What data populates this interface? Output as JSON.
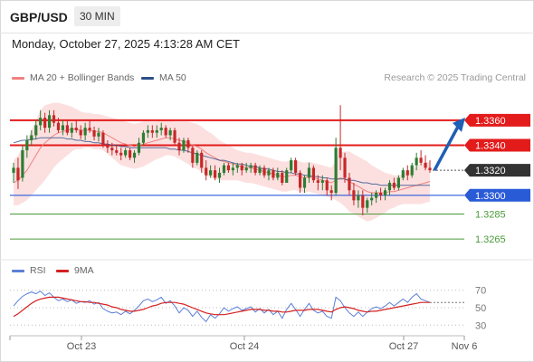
{
  "header": {
    "pair": "GBP/USD",
    "timeframe": "30 MIN"
  },
  "datetime": "Monday, October 27, 2025 4:13:28 AM CET",
  "legend": {
    "ma20": {
      "label": "MA 20 + Bollinger Bands",
      "color": "#f08080"
    },
    "ma50": {
      "label": "MA 50",
      "color": "#2c4f8a"
    }
  },
  "credit": "Research © 2025 Trading Central",
  "rsi_legend": {
    "rsi": {
      "label": "RSI",
      "color": "#5b7fd6"
    },
    "ma9": {
      "label": "9MA",
      "color": "#d42020"
    }
  },
  "chart_data": [
    {
      "type": "candlestick",
      "ylim": [
        1.3255,
        1.3378
      ],
      "x_ticks": [
        "Oct 23",
        "Oct 24",
        "Oct 27",
        "Nov 6"
      ],
      "levels": [
        {
          "value": 1.336,
          "label": "1.3360",
          "style": "resistance"
        },
        {
          "value": 1.334,
          "label": "1.3340",
          "style": "resistance"
        },
        {
          "value": 1.332,
          "label": "1.3320",
          "style": "current"
        },
        {
          "value": 1.33,
          "label": "1.3300",
          "style": "pivot"
        },
        {
          "value": 1.3285,
          "label": "1.3285",
          "style": "support"
        },
        {
          "value": 1.3265,
          "label": "1.3265",
          "style": "support"
        }
      ],
      "colors": {
        "up": "#2e7d32",
        "down": "#c62828",
        "band": "#fbd5d5",
        "resistance": "#e31b1b",
        "pivot": "#2a5bd7",
        "support": "#4a9a3a",
        "current": "#333333",
        "arrow": "#1f5fb5"
      },
      "candles": [
        [
          1.3318,
          1.3326,
          1.331,
          1.3322
        ],
        [
          1.3322,
          1.333,
          1.3305,
          1.3312
        ],
        [
          1.3314,
          1.334,
          1.3311,
          1.3336
        ],
        [
          1.3336,
          1.3348,
          1.333,
          1.3344
        ],
        [
          1.3344,
          1.3352,
          1.334,
          1.3348
        ],
        [
          1.3348,
          1.336,
          1.3345,
          1.3356
        ],
        [
          1.3356,
          1.3368,
          1.3352,
          1.3362
        ],
        [
          1.3362,
          1.3366,
          1.335,
          1.3354
        ],
        [
          1.3354,
          1.3368,
          1.335,
          1.3364
        ],
        [
          1.3364,
          1.3368,
          1.3355,
          1.3358
        ],
        [
          1.3358,
          1.3362,
          1.335,
          1.3352
        ],
        [
          1.3352,
          1.336,
          1.3348,
          1.3356
        ],
        [
          1.3356,
          1.336,
          1.3348,
          1.335
        ],
        [
          1.335,
          1.3358,
          1.3346,
          1.3354
        ],
        [
          1.3354,
          1.336,
          1.335,
          1.3352
        ],
        [
          1.3352,
          1.3356,
          1.3345,
          1.3348
        ],
        [
          1.3348,
          1.3358,
          1.3344,
          1.3354
        ],
        [
          1.3354,
          1.336,
          1.335,
          1.3352
        ],
        [
          1.3352,
          1.3355,
          1.3344,
          1.3347
        ],
        [
          1.3347,
          1.3354,
          1.3343,
          1.335
        ],
        [
          1.335,
          1.3352,
          1.3338,
          1.334
        ],
        [
          1.334,
          1.3344,
          1.3334,
          1.3338
        ],
        [
          1.3338,
          1.3342,
          1.3332,
          1.3336
        ],
        [
          1.3336,
          1.334,
          1.3332,
          1.3334
        ],
        [
          1.3334,
          1.3338,
          1.3328,
          1.3332
        ],
        [
          1.3332,
          1.3338,
          1.333,
          1.3336
        ],
        [
          1.3336,
          1.3338,
          1.3328,
          1.333
        ],
        [
          1.333,
          1.3336,
          1.3326,
          1.3334
        ],
        [
          1.3334,
          1.3346,
          1.3332,
          1.3342
        ],
        [
          1.3342,
          1.3352,
          1.334,
          1.335
        ],
        [
          1.335,
          1.3356,
          1.3346,
          1.3352
        ],
        [
          1.3352,
          1.3356,
          1.3346,
          1.335
        ],
        [
          1.335,
          1.3356,
          1.3346,
          1.3352
        ],
        [
          1.3352,
          1.3358,
          1.3348,
          1.3354
        ],
        [
          1.3354,
          1.3356,
          1.3346,
          1.3348
        ],
        [
          1.3348,
          1.3354,
          1.3344,
          1.3352
        ],
        [
          1.3352,
          1.3354,
          1.334,
          1.3342
        ],
        [
          1.3342,
          1.3346,
          1.3332,
          1.3336
        ],
        [
          1.3336,
          1.3346,
          1.3334,
          1.3344
        ],
        [
          1.3344,
          1.3346,
          1.3334,
          1.3338
        ],
        [
          1.3338,
          1.334,
          1.3322,
          1.3326
        ],
        [
          1.3326,
          1.3336,
          1.3324,
          1.3334
        ],
        [
          1.3334,
          1.3336,
          1.3318,
          1.3322
        ],
        [
          1.3322,
          1.3328,
          1.3312,
          1.3316
        ],
        [
          1.3316,
          1.3324,
          1.3314,
          1.332
        ],
        [
          1.332,
          1.3324,
          1.3312,
          1.3314
        ],
        [
          1.3314,
          1.3322,
          1.331,
          1.3318
        ],
        [
          1.3318,
          1.3326,
          1.3316,
          1.3324
        ],
        [
          1.3324,
          1.3326,
          1.3318,
          1.332
        ],
        [
          1.332,
          1.3326,
          1.3316,
          1.3322
        ],
        [
          1.3322,
          1.3326,
          1.3318,
          1.3324
        ],
        [
          1.3324,
          1.3326,
          1.3316,
          1.332
        ],
        [
          1.332,
          1.3326,
          1.3318,
          1.3322
        ],
        [
          1.3322,
          1.3326,
          1.3318,
          1.3324
        ],
        [
          1.3324,
          1.3326,
          1.3316,
          1.3318
        ],
        [
          1.3318,
          1.3324,
          1.3316,
          1.3322
        ],
        [
          1.3322,
          1.3324,
          1.3314,
          1.3316
        ],
        [
          1.3316,
          1.3322,
          1.3312,
          1.332
        ],
        [
          1.332,
          1.3322,
          1.3312,
          1.3314
        ],
        [
          1.3314,
          1.3322,
          1.3312,
          1.3318
        ],
        [
          1.3318,
          1.332,
          1.3308,
          1.331
        ],
        [
          1.331,
          1.3322,
          1.331,
          1.332
        ],
        [
          1.332,
          1.333,
          1.3318,
          1.3328
        ],
        [
          1.3328,
          1.333,
          1.3316,
          1.3318
        ],
        [
          1.3318,
          1.332,
          1.3302,
          1.3306
        ],
        [
          1.3306,
          1.3316,
          1.3302,
          1.3314
        ],
        [
          1.3314,
          1.3326,
          1.331,
          1.3322
        ],
        [
          1.3322,
          1.3324,
          1.331,
          1.3312
        ],
        [
          1.3312,
          1.3316,
          1.3304,
          1.331
        ],
        [
          1.331,
          1.3316,
          1.3304,
          1.3312
        ],
        [
          1.3312,
          1.3314,
          1.33,
          1.3304
        ],
        [
          1.3304,
          1.3308,
          1.3296,
          1.3302
        ],
        [
          1.3302,
          1.3346,
          1.33,
          1.3338
        ],
        [
          1.3338,
          1.3372,
          1.332,
          1.333
        ],
        [
          1.333,
          1.3334,
          1.331,
          1.3314
        ],
        [
          1.3314,
          1.3318,
          1.33,
          1.3304
        ],
        [
          1.3304,
          1.331,
          1.3292,
          1.3296
        ],
        [
          1.3296,
          1.3304,
          1.329,
          1.33
        ],
        [
          1.33,
          1.3304,
          1.3284,
          1.329
        ],
        [
          1.329,
          1.3298,
          1.3286,
          1.3296
        ],
        [
          1.3296,
          1.3302,
          1.3292,
          1.3298
        ],
        [
          1.3298,
          1.3304,
          1.3294,
          1.3302
        ],
        [
          1.3302,
          1.3306,
          1.3296,
          1.33
        ],
        [
          1.33,
          1.3306,
          1.3296,
          1.3304
        ],
        [
          1.3304,
          1.3312,
          1.33,
          1.331
        ],
        [
          1.331,
          1.3314,
          1.3304,
          1.3306
        ],
        [
          1.3306,
          1.3316,
          1.3304,
          1.3314
        ],
        [
          1.3314,
          1.3322,
          1.3312,
          1.332
        ],
        [
          1.332,
          1.3324,
          1.3312,
          1.3316
        ],
        [
          1.3316,
          1.3326,
          1.3314,
          1.3324
        ],
        [
          1.3324,
          1.3334,
          1.332,
          1.333
        ],
        [
          1.333,
          1.3336,
          1.3324,
          1.3326
        ],
        [
          1.3326,
          1.3332,
          1.332,
          1.3322
        ],
        [
          1.3322,
          1.3328,
          1.3318,
          1.332
        ]
      ],
      "ma20": [
        1.331,
        1.3312,
        1.3316,
        1.332,
        1.3326,
        1.3332,
        1.3338,
        1.3342,
        1.3345,
        1.3348,
        1.335,
        1.3351,
        1.3352,
        1.3353,
        1.3353,
        1.3352,
        1.3352,
        1.3352,
        1.3351,
        1.3351,
        1.335,
        1.3348,
        1.3346,
        1.3344,
        1.3342,
        1.3341,
        1.334,
        1.3339,
        1.334,
        1.3341,
        1.3342,
        1.3343,
        1.3344,
        1.3345,
        1.3346,
        1.3346,
        1.3345,
        1.3344,
        1.3343,
        1.3342,
        1.334,
        1.3339,
        1.3337,
        1.3334,
        1.3332,
        1.333,
        1.3328,
        1.3327,
        1.3326,
        1.3325,
        1.3324,
        1.3323,
        1.3322,
        1.3322,
        1.3321,
        1.332,
        1.3319,
        1.3318,
        1.3317,
        1.3316,
        1.3315,
        1.3315,
        1.3316,
        1.3316,
        1.3315,
        1.3314,
        1.3315,
        1.3314,
        1.3313,
        1.3312,
        1.3311,
        1.331,
        1.3312,
        1.3314,
        1.3313,
        1.3311,
        1.3309,
        1.3307,
        1.3305,
        1.3303,
        1.3302,
        1.3302,
        1.3302,
        1.3302,
        1.3303,
        1.3303,
        1.3304,
        1.3305,
        1.3306,
        1.3307,
        1.3308,
        1.3309,
        1.331,
        1.3311
      ],
      "bb_width": [
        0.0018,
        0.002,
        0.0022,
        0.0024,
        0.0026,
        0.0028,
        0.003,
        0.003,
        0.0028,
        0.0026,
        0.0024,
        0.0022,
        0.002,
        0.0018,
        0.0016,
        0.0015,
        0.0014,
        0.0014,
        0.0014,
        0.0014,
        0.0014,
        0.0015,
        0.0016,
        0.0017,
        0.0018,
        0.0018,
        0.0018,
        0.0018,
        0.0018,
        0.0018,
        0.0017,
        0.0016,
        0.0015,
        0.0015,
        0.0014,
        0.0014,
        0.0014,
        0.0015,
        0.0016,
        0.0017,
        0.0018,
        0.0018,
        0.0018,
        0.0018,
        0.0018,
        0.0017,
        0.0016,
        0.0015,
        0.0014,
        0.0013,
        0.0012,
        0.0012,
        0.0012,
        0.0012,
        0.0012,
        0.0012,
        0.0012,
        0.0012,
        0.0012,
        0.0012,
        0.0012,
        0.0012,
        0.0012,
        0.0012,
        0.0012,
        0.0012,
        0.0012,
        0.0012,
        0.0012,
        0.0012,
        0.0012,
        0.0012,
        0.0016,
        0.002,
        0.0022,
        0.0024,
        0.0024,
        0.0024,
        0.0024,
        0.0024,
        0.0022,
        0.002,
        0.0018,
        0.0016,
        0.0014,
        0.0013,
        0.0012,
        0.0012,
        0.0013,
        0.0014,
        0.0015,
        0.0016,
        0.0016,
        0.0016
      ],
      "ma50": [
        1.3342,
        1.3343,
        1.3344,
        1.3344,
        1.3345,
        1.3345,
        1.3346,
        1.3346,
        1.3346,
        1.3346,
        1.3346,
        1.3346,
        1.3345,
        1.3345,
        1.3344,
        1.3344,
        1.3343,
        1.3343,
        1.3342,
        1.3342,
        1.3341,
        1.3341,
        1.334,
        1.334,
        1.3339,
        1.3339,
        1.3338,
        1.3338,
        1.3338,
        1.3338,
        1.3338,
        1.3338,
        1.3338,
        1.3338,
        1.3338,
        1.3337,
        1.3337,
        1.3336,
        1.3336,
        1.3335,
        1.3334,
        1.3333,
        1.3332,
        1.3331,
        1.333,
        1.3329,
        1.3328,
        1.3328,
        1.3327,
        1.3326,
        1.3325,
        1.3325,
        1.3324,
        1.3323,
        1.3323,
        1.3322,
        1.3321,
        1.3321,
        1.332,
        1.3319,
        1.3319,
        1.3318,
        1.3318,
        1.3317,
        1.3317,
        1.3316,
        1.3316,
        1.3315,
        1.3315,
        1.3314,
        1.3314,
        1.3313,
        1.3313,
        1.3313,
        1.3313,
        1.3312,
        1.3312,
        1.3311,
        1.331,
        1.331,
        1.3309,
        1.3309,
        1.3308,
        1.3308,
        1.3308,
        1.3308,
        1.3308,
        1.3308,
        1.3308,
        1.3308,
        1.3308,
        1.3308,
        1.3308,
        1.3308
      ],
      "forecast": {
        "from": 1.332,
        "to": 1.336
      }
    },
    {
      "type": "line",
      "title": "RSI",
      "ylim": [
        22,
        78
      ],
      "y_ticks": [
        70,
        50,
        30
      ],
      "series": [
        {
          "name": "RSI",
          "values": [
            52,
            58,
            63,
            66,
            68,
            66,
            69,
            64,
            67,
            62,
            58,
            60,
            57,
            59,
            55,
            57,
            56,
            58,
            54,
            56,
            49,
            46,
            44,
            45,
            42,
            46,
            43,
            47,
            52,
            58,
            60,
            57,
            59,
            62,
            55,
            58,
            52,
            44,
            50,
            47,
            40,
            46,
            39,
            34,
            42,
            38,
            43,
            50,
            46,
            49,
            51,
            47,
            49,
            51,
            45,
            49,
            44,
            48,
            42,
            46,
            38,
            48,
            55,
            48,
            40,
            48,
            55,
            47,
            44,
            46,
            40,
            38,
            62,
            58,
            50,
            44,
            40,
            45,
            40,
            45,
            49,
            51,
            49,
            52,
            56,
            52,
            56,
            60,
            56,
            62,
            66,
            60,
            58,
            56
          ]
        },
        {
          "name": "9MA",
          "values": [
            40,
            43,
            47,
            51,
            55,
            58,
            60,
            61,
            62,
            62,
            62,
            61,
            60,
            59,
            58,
            57,
            57,
            56,
            56,
            55,
            54,
            53,
            51,
            50,
            48,
            47,
            46,
            46,
            47,
            48,
            50,
            52,
            53,
            55,
            56,
            56,
            56,
            55,
            54,
            52,
            50,
            48,
            46,
            44,
            43,
            42,
            42,
            42,
            43,
            44,
            45,
            46,
            47,
            48,
            48,
            48,
            47,
            47,
            46,
            46,
            45,
            45,
            46,
            47,
            47,
            47,
            48,
            48,
            48,
            47,
            46,
            45,
            48,
            50,
            51,
            50,
            49,
            47,
            46,
            45,
            46,
            46,
            47,
            48,
            49,
            50,
            51,
            52,
            53,
            54,
            55,
            56,
            56,
            56
          ]
        }
      ]
    }
  ]
}
